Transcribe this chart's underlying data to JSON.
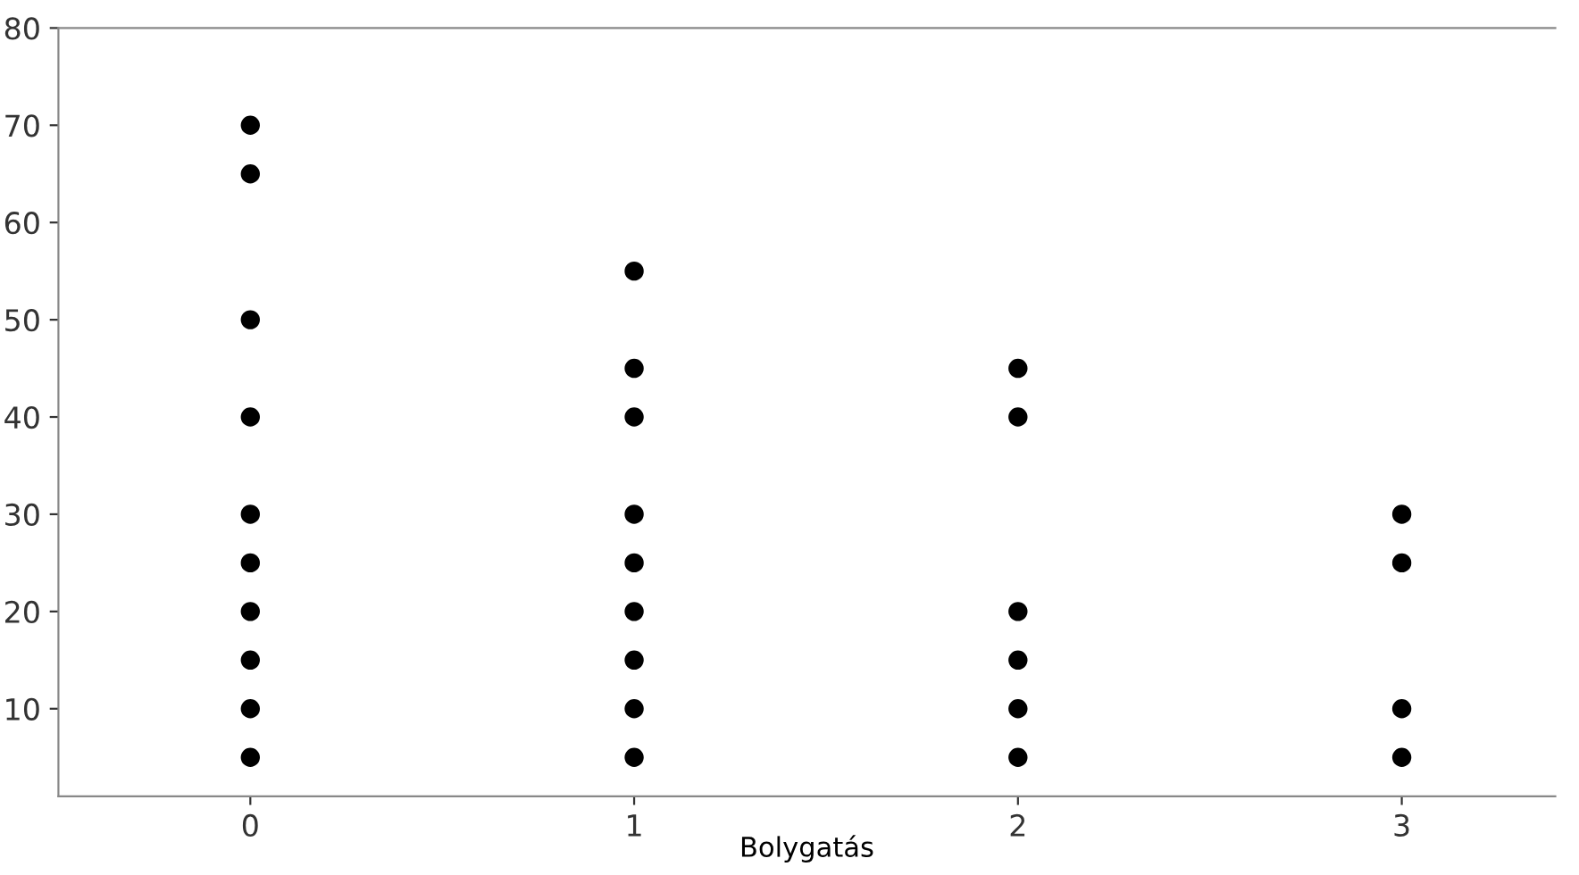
{
  "chart_data": {
    "type": "scatter",
    "xlabel": "Bolygatás",
    "x": [
      0,
      0,
      0,
      0,
      0,
      0,
      0,
      0,
      0,
      0,
      1,
      1,
      1,
      1,
      1,
      1,
      1,
      1,
      1,
      2,
      2,
      2,
      2,
      2,
      2,
      3,
      3,
      3,
      3
    ],
    "values": [
      70,
      65,
      50,
      40,
      30,
      25,
      20,
      15,
      10,
      5,
      55,
      45,
      40,
      30,
      25,
      20,
      15,
      10,
      5,
      45,
      40,
      20,
      15,
      10,
      5,
      30,
      25,
      10,
      5
    ],
    "color": "#000000",
    "marker": "circle",
    "xlim": [
      -0.5,
      3.4
    ],
    "xticks": [
      0,
      1,
      2,
      3
    ],
    "ylim": [
      1,
      80
    ],
    "yticks": [
      10,
      20,
      30,
      40,
      50,
      60,
      70,
      80
    ],
    "grid": false
  }
}
